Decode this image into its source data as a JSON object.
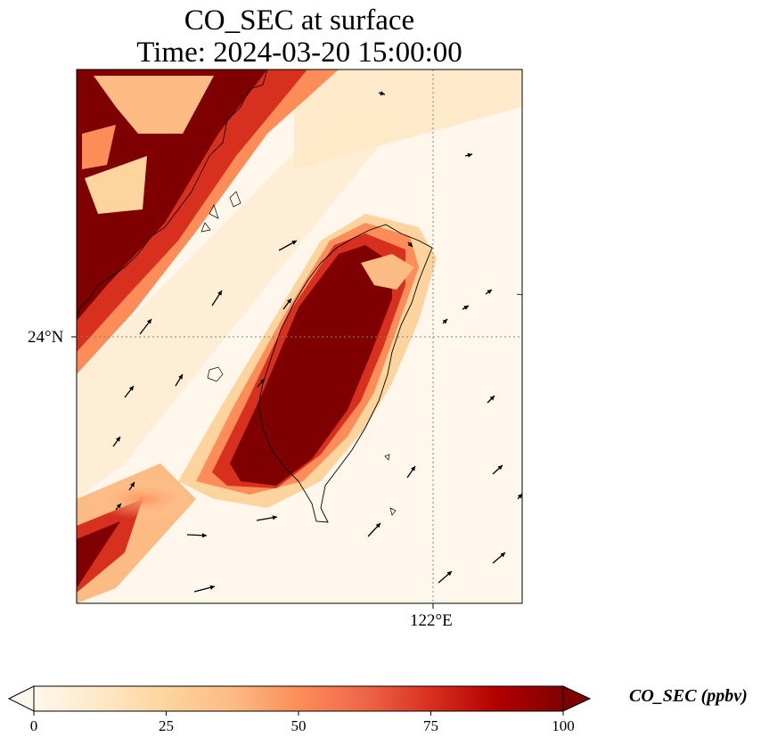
{
  "title": {
    "line1": "CO_SEC at surface",
    "line2": "Time: 2024-03-20 15:00:00"
  },
  "axes": {
    "lat_tick_label": "24°N",
    "lon_tick_label": "122°E"
  },
  "colorbar": {
    "label": "CO_SEC (ppbv)",
    "min": 0,
    "max": 100,
    "ticks": [
      "0",
      "25",
      "50",
      "75",
      "100"
    ],
    "colormap": "OrRd",
    "extend": "both",
    "stops": [
      "#fff7ec",
      "#fee8c8",
      "#fdd49e",
      "#fdbb84",
      "#fc8d59",
      "#ef6548",
      "#d7301f",
      "#b30000",
      "#7f0000"
    ]
  },
  "map": {
    "field": "CO_SEC",
    "level": "surface",
    "gridlines": "dotted",
    "wind_vectors": true,
    "coastlines": true,
    "colors": {
      "high": "#7f0000",
      "mid": "#ef6548",
      "low": "#fdd49e",
      "background": "#fff7ec",
      "coastline": "#000000",
      "gridline": "#808080"
    }
  }
}
